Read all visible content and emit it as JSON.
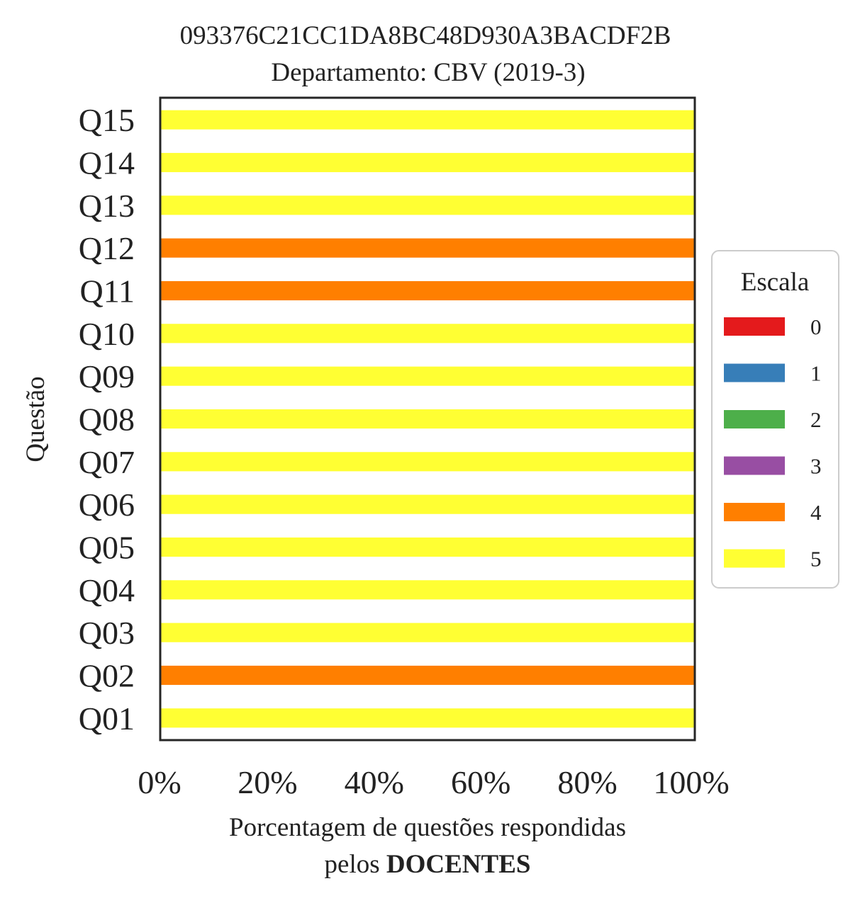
{
  "chart_data": {
    "type": "bar",
    "orientation": "horizontal",
    "stacked": true,
    "title_lines": [
      "093376C21CC1DA8BC48D930A3BACDF2B",
      "Departamento: CBV (2019-3)"
    ],
    "xlabel_line1": "Porcentagem de questões respondidas",
    "xlabel_line2_prefix": "pelos ",
    "xlabel_line2_bold": "DOCENTES",
    "ylabel": "Questão",
    "xlim": [
      0,
      100
    ],
    "xticks": [
      0,
      20,
      40,
      60,
      80,
      100
    ],
    "xtick_labels": [
      "0%",
      "20%",
      "40%",
      "60%",
      "80%",
      "100%"
    ],
    "categories": [
      "Q01",
      "Q02",
      "Q03",
      "Q04",
      "Q05",
      "Q06",
      "Q07",
      "Q08",
      "Q09",
      "Q10",
      "Q11",
      "Q12",
      "Q13",
      "Q14",
      "Q15"
    ],
    "series": [
      {
        "name": "0",
        "color": "#e41a1c",
        "values": [
          0,
          0,
          0,
          0,
          0,
          0,
          0,
          0,
          0,
          0,
          0,
          0,
          0,
          0,
          0
        ]
      },
      {
        "name": "1",
        "color": "#377eb8",
        "values": [
          0,
          0,
          0,
          0,
          0,
          0,
          0,
          0,
          0,
          0,
          0,
          0,
          0,
          0,
          0
        ]
      },
      {
        "name": "2",
        "color": "#4daf4a",
        "values": [
          0,
          0,
          0,
          0,
          0,
          0,
          0,
          0,
          0,
          0,
          0,
          0,
          0,
          0,
          0
        ]
      },
      {
        "name": "3",
        "color": "#984ea3",
        "values": [
          0,
          0,
          0,
          0,
          0,
          0,
          0,
          0,
          0,
          0,
          0,
          0,
          0,
          0,
          0
        ]
      },
      {
        "name": "4",
        "color": "#ff7f00",
        "values": [
          0,
          100,
          0,
          0,
          0,
          0,
          0,
          0,
          0,
          0,
          100,
          100,
          0,
          0,
          0
        ]
      },
      {
        "name": "5",
        "color": "#ffff33",
        "values": [
          100,
          0,
          100,
          100,
          100,
          100,
          100,
          100,
          100,
          100,
          0,
          0,
          100,
          100,
          100
        ]
      }
    ],
    "legend": {
      "title": "Escala",
      "placement": "right"
    },
    "grid": false
  }
}
